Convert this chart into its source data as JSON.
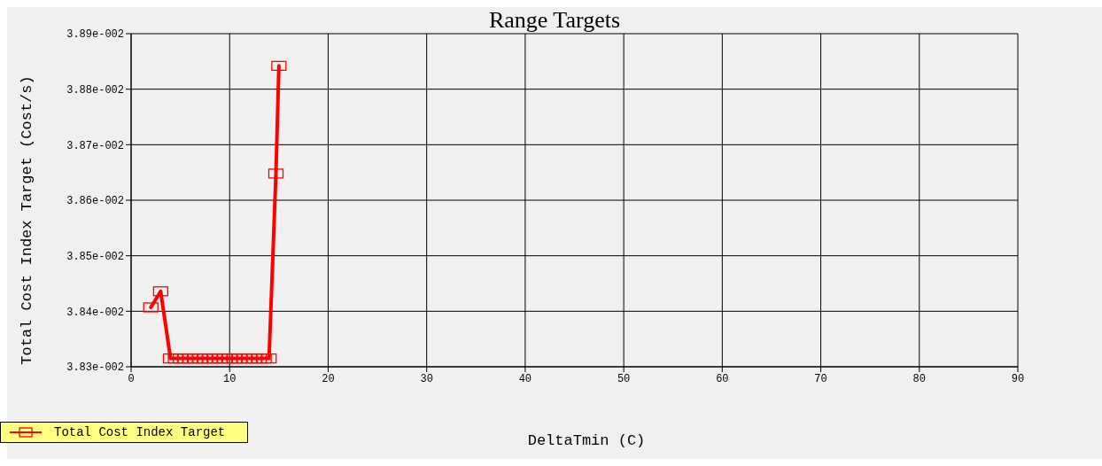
{
  "chart_data": {
    "type": "line",
    "title": "Range Targets",
    "xlabel": "DeltaTmin (C)",
    "ylabel": "Total Cost Index Target (Cost/s)",
    "x": [
      2,
      3,
      4,
      4.5,
      5,
      5.5,
      6,
      6.5,
      7,
      7.5,
      8,
      8.5,
      9,
      9.5,
      10,
      10.5,
      11,
      11.5,
      12,
      12.5,
      13,
      13.5,
      14,
      14.7,
      15
    ],
    "series": [
      {
        "name": "Total Cost Index Target",
        "color": "#ff0000",
        "values": [
          0.038407,
          0.038436,
          0.038315,
          0.038315,
          0.038315,
          0.038315,
          0.038315,
          0.038315,
          0.038315,
          0.038315,
          0.038315,
          0.038315,
          0.038315,
          0.038315,
          0.038315,
          0.038315,
          0.038315,
          0.038315,
          0.038315,
          0.038315,
          0.038315,
          0.038315,
          0.038315,
          0.038648,
          0.038842
        ]
      }
    ],
    "xlim": [
      0,
      90
    ],
    "xticks": [
      0,
      10,
      20,
      30,
      40,
      50,
      60,
      70,
      80,
      90
    ],
    "ylim": [
      0.0383,
      0.0389
    ],
    "yticks": [
      {
        "value": 0.0383,
        "label": "3.83e-002"
      },
      {
        "value": 0.0384,
        "label": "3.84e-002"
      },
      {
        "value": 0.0385,
        "label": "3.85e-002"
      },
      {
        "value": 0.0386,
        "label": "3.86e-002"
      },
      {
        "value": 0.0387,
        "label": "3.87e-002"
      },
      {
        "value": 0.0388,
        "label": "3.88e-002"
      },
      {
        "value": 0.0389,
        "label": "3.89e-002"
      }
    ],
    "grid": true,
    "legend": "bottom left",
    "marker": "square",
    "line_style": "solid"
  }
}
